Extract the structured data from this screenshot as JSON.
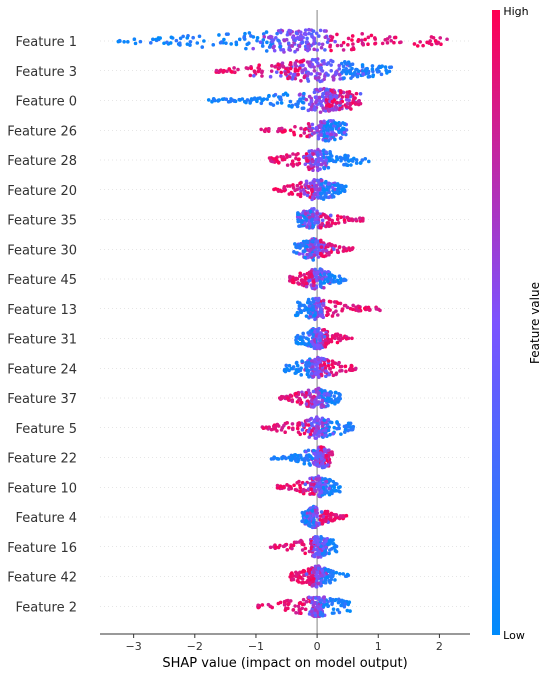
{
  "chart_data": {
    "type": "scatter",
    "subtype": "shap-beeswarm",
    "xlabel": "SHAP value (impact on model output)",
    "xlim": [
      -3.55,
      2.5
    ],
    "xticks": [
      -3,
      -2,
      -1,
      0,
      1,
      2
    ],
    "grid": false,
    "colorbar": {
      "label": "Feature value",
      "high_label": "High",
      "low_label": "Low",
      "low_color": "#008bfb",
      "mid_color": "#7c52ff",
      "high_color": "#ff0052"
    },
    "features": [
      {
        "name": "Feature 1",
        "min": -3.25,
        "max": 2.15,
        "hub": -0.3,
        "hub_width": 0.6,
        "low_side": "left",
        "low_min": -3.25,
        "low_max": -0.6,
        "high_min": 0.2,
        "high_max": 2.15
      },
      {
        "name": "Feature 3",
        "min": -1.65,
        "max": 1.22,
        "hub": 0.0,
        "hub_width": 0.8,
        "low_side": "right",
        "low_min": 0.4,
        "low_max": 1.22,
        "high_min": -1.65,
        "high_max": -0.2
      },
      {
        "name": "Feature 0",
        "min": -1.8,
        "max": 0.72,
        "hub": 0.1,
        "hub_width": 0.45,
        "low_side": "left",
        "low_min": -1.8,
        "low_max": -0.2,
        "high_min": 0.15,
        "high_max": 0.72
      },
      {
        "name": "Feature 26",
        "min": -0.92,
        "max": 0.48,
        "hub": 0.15,
        "hub_width": 0.35,
        "low_side": "right",
        "low_min": 0.1,
        "low_max": 0.48,
        "high_min": -0.92,
        "high_max": -0.05
      },
      {
        "name": "Feature 28",
        "min": -0.78,
        "max": 0.85,
        "hub": 0.0,
        "hub_width": 0.25,
        "low_side": "right",
        "low_min": 0.1,
        "low_max": 0.85,
        "high_min": -0.78,
        "high_max": -0.05
      },
      {
        "name": "Feature 20",
        "min": -0.75,
        "max": 0.48,
        "hub": 0.0,
        "hub_width": 0.25,
        "low_side": "right",
        "low_min": 0.05,
        "low_max": 0.48,
        "high_min": -0.75,
        "high_max": -0.05
      },
      {
        "name": "Feature 35",
        "min": -0.33,
        "max": 0.75,
        "hub": -0.05,
        "hub_width": 0.25,
        "low_side": "left",
        "low_min": -0.33,
        "low_max": -0.05,
        "high_min": 0.05,
        "high_max": 0.75
      },
      {
        "name": "Feature 30",
        "min": -0.38,
        "max": 0.6,
        "hub": -0.05,
        "hub_width": 0.25,
        "low_side": "left",
        "low_min": -0.38,
        "low_max": -0.05,
        "high_min": 0.05,
        "high_max": 0.6
      },
      {
        "name": "Feature 45",
        "min": -0.45,
        "max": 0.48,
        "hub": 0.0,
        "hub_width": 0.2,
        "low_side": "right",
        "low_min": 0.05,
        "low_max": 0.48,
        "high_min": -0.45,
        "high_max": -0.05
      },
      {
        "name": "Feature 13",
        "min": -0.35,
        "max": 1.05,
        "hub": 0.0,
        "hub_width": 0.15,
        "low_side": "left",
        "low_min": -0.35,
        "low_max": -0.02,
        "high_min": 0.05,
        "high_max": 1.05
      },
      {
        "name": "Feature 31",
        "min": -0.35,
        "max": 0.58,
        "hub": 0.0,
        "hub_width": 0.15,
        "low_side": "left",
        "low_min": -0.35,
        "low_max": -0.02,
        "high_min": 0.05,
        "high_max": 0.58
      },
      {
        "name": "Feature 24",
        "min": -0.55,
        "max": 0.65,
        "hub": 0.0,
        "hub_width": 0.22,
        "low_side": "left",
        "low_min": -0.55,
        "low_max": -0.05,
        "high_min": 0.05,
        "high_max": 0.65
      },
      {
        "name": "Feature 37",
        "min": -0.62,
        "max": 0.38,
        "hub": 0.0,
        "hub_width": 0.2,
        "low_side": "right",
        "low_min": 0.05,
        "low_max": 0.38,
        "high_min": -0.62,
        "high_max": -0.05
      },
      {
        "name": "Feature 5",
        "min": -0.9,
        "max": 0.6,
        "hub": 0.0,
        "hub_width": 0.2,
        "low_side": "right",
        "low_min": 0.05,
        "low_max": 0.6,
        "high_min": -0.9,
        "high_max": -0.05
      },
      {
        "name": "Feature 22",
        "min": -0.75,
        "max": 0.25,
        "hub": 0.05,
        "hub_width": 0.15,
        "low_side": "left",
        "low_min": -0.75,
        "low_max": -0.05,
        "high_min": 0.05,
        "high_max": 0.25
      },
      {
        "name": "Feature 10",
        "min": -0.68,
        "max": 0.38,
        "hub": 0.02,
        "hub_width": 0.15,
        "low_side": "right",
        "low_min": 0.05,
        "low_max": 0.38,
        "high_min": -0.68,
        "high_max": -0.05
      },
      {
        "name": "Feature 4",
        "min": -0.25,
        "max": 0.48,
        "hub": -0.05,
        "hub_width": 0.15,
        "low_side": "left",
        "low_min": -0.25,
        "low_max": -0.05,
        "high_min": 0.05,
        "high_max": 0.48
      },
      {
        "name": "Feature 16",
        "min": -0.82,
        "max": 0.32,
        "hub": 0.02,
        "hub_width": 0.15,
        "low_side": "right",
        "low_min": 0.05,
        "low_max": 0.32,
        "high_min": -0.82,
        "high_max": -0.05
      },
      {
        "name": "Feature 42",
        "min": -0.45,
        "max": 0.52,
        "hub": 0.0,
        "hub_width": 0.15,
        "low_side": "right",
        "low_min": 0.05,
        "low_max": 0.52,
        "high_min": -0.45,
        "high_max": -0.05
      },
      {
        "name": "Feature 2",
        "min": -1.0,
        "max": 0.58,
        "hub": 0.0,
        "hub_width": 0.15,
        "low_side": "right",
        "low_min": 0.05,
        "low_max": 0.58,
        "high_min": -1.0,
        "high_max": -0.05
      }
    ]
  }
}
